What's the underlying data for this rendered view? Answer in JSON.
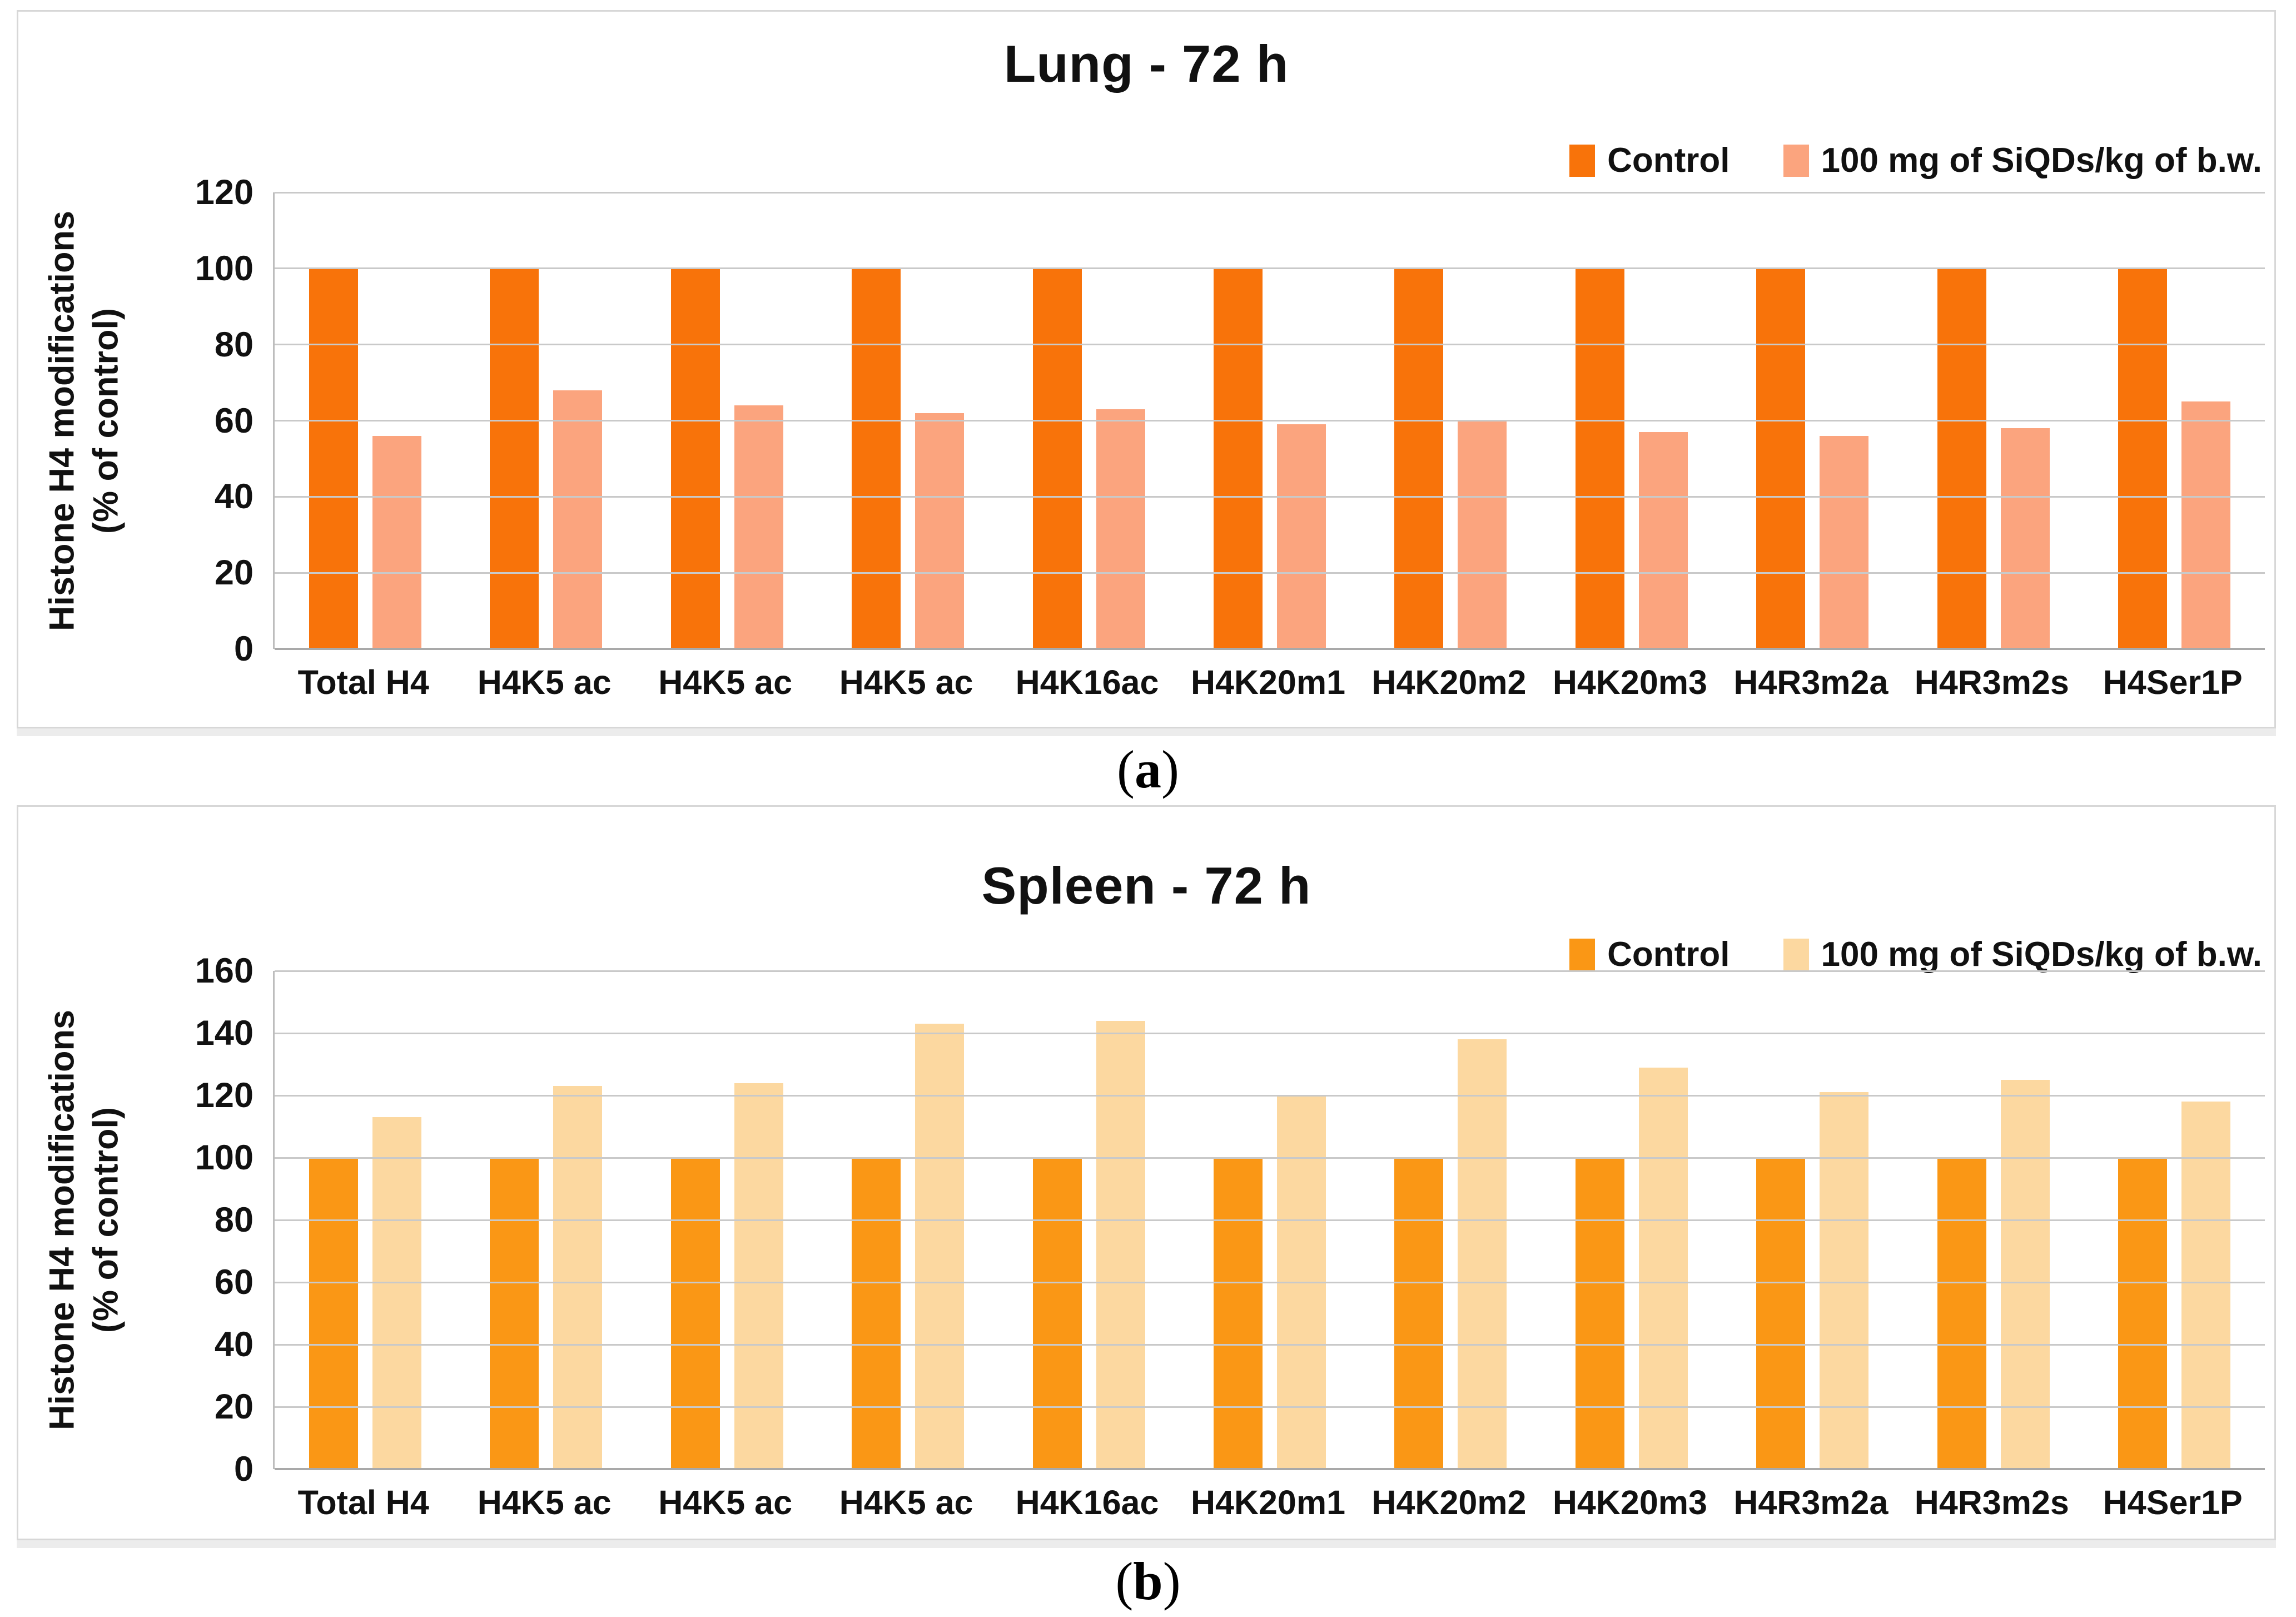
{
  "figure": {
    "captions": [
      {
        "open": "(",
        "letter": "a",
        "close": ")"
      },
      {
        "open": "(",
        "letter": "b",
        "close": ")"
      }
    ]
  },
  "chart_data": [
    {
      "type": "bar",
      "title": "Lung - 72 h",
      "ylabel_lines": [
        "Histone H4 modifications",
        "(% of control)"
      ],
      "categories": [
        "Total H4",
        "H4K5 ac",
        "H4K5 ac",
        "H4K5 ac",
        "H4K16ac",
        "H4K20m1",
        "H4K20m2",
        "H4K20m3",
        "H4R3m2a",
        "H4R3m2s",
        "H4Ser1P"
      ],
      "series": [
        {
          "name": "Control",
          "color": "#F8730A",
          "values": [
            100,
            100,
            100,
            100,
            100,
            100,
            100,
            100,
            100,
            100,
            100
          ]
        },
        {
          "name": "100 mg of SiQDs/kg of b.w.",
          "color": "#FBA47E",
          "values": [
            56,
            68,
            64,
            62,
            63,
            59,
            60,
            57,
            56,
            58,
            65
          ]
        }
      ],
      "ylim": [
        0,
        120
      ],
      "yticks": [
        0,
        20,
        40,
        60,
        80,
        100,
        120
      ],
      "grid": true,
      "legend_position": "top-right"
    },
    {
      "type": "bar",
      "title": "Spleen - 72 h",
      "ylabel_lines": [
        "Histone H4 modifications",
        "(% of control)"
      ],
      "categories": [
        "Total H4",
        "H4K5 ac",
        "H4K5 ac",
        "H4K5 ac",
        "H4K16ac",
        "H4K20m1",
        "H4K20m2",
        "H4K20m3",
        "H4R3m2a",
        "H4R3m2s",
        "H4Ser1P"
      ],
      "series": [
        {
          "name": "Control",
          "color": "#FA9715",
          "values": [
            100,
            100,
            100,
            100,
            100,
            100,
            100,
            100,
            100,
            100,
            100
          ]
        },
        {
          "name": "100 mg of SiQDs/kg of b.w.",
          "color": "#FCD8A0",
          "values": [
            113,
            123,
            124,
            143,
            144,
            120,
            138,
            129,
            121,
            125,
            118
          ]
        }
      ],
      "ylim": [
        0,
        160
      ],
      "yticks": [
        0,
        20,
        40,
        60,
        80,
        100,
        120,
        140,
        160
      ],
      "grid": true,
      "legend_position": "top-right"
    }
  ]
}
